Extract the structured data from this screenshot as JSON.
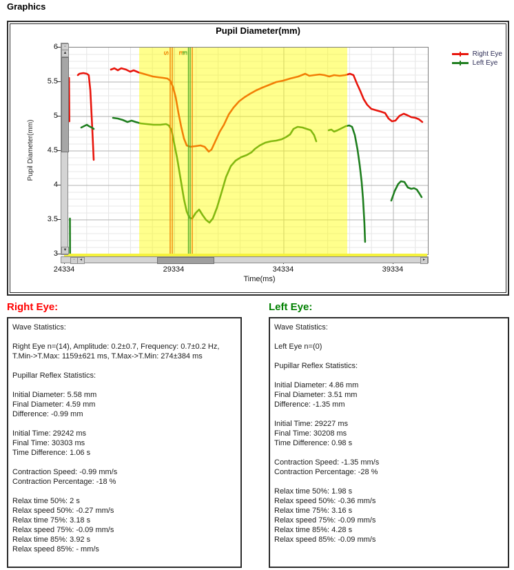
{
  "page": {
    "label": "Graphics"
  },
  "chart": {
    "title": "Pupil Diameter(mm)",
    "legend": [
      {
        "label": "Right Eye",
        "color": "#e8150c"
      },
      {
        "label": "Left Eye",
        "color": "#1e7e1e"
      }
    ],
    "x_axis": {
      "label": "Time(ms)",
      "ticks": [
        24334,
        29334,
        34334,
        39334
      ]
    },
    "y_axis": {
      "label": "Pupil Diameter(mm)",
      "ticks": [
        6,
        5.5,
        5,
        4.5,
        4,
        3.5,
        3
      ]
    }
  },
  "icons": {
    "reset": "▫",
    "up": "▲",
    "down": "▼",
    "left": "◄",
    "right": "►",
    "hreset": "▫"
  },
  "chart_data": {
    "type": "line",
    "title": "Pupil Diameter(mm)",
    "xlabel": "Time(ms)",
    "ylabel": "Pupil Diameter(mm)",
    "xlim": [
      24334,
      40908
    ],
    "ylim": [
      3,
      6
    ],
    "x_ticks": [
      24334,
      29334,
      34334,
      39334
    ],
    "y_ticks": [
      3,
      3.5,
      4,
      4.5,
      5,
      5.5,
      6
    ],
    "x_minor_step": 1000,
    "y_minor_step": 0.1,
    "grid": true,
    "legend_position": "top-right",
    "highlight_band_x": [
      27730,
      37228
    ],
    "highlight_color": "#ffff00",
    "highlight_opacity": 0.45,
    "markers": [
      {
        "label": "S",
        "color": "#ee8300",
        "lines_t": [
          29145,
          29240
        ],
        "label_t": 28865
      },
      {
        "label": "E",
        "color": "#ee8300",
        "lines_t": [
          30152
        ],
        "label_t": 29555
      },
      {
        "label": "E",
        "color": "#52ad27",
        "lines_t": [
          29979,
          30058
        ],
        "label_t": 29715
      }
    ],
    "series": [
      {
        "name": "Right Eye",
        "color": "#e8150c",
        "segments": [
          [
            [
              24530,
              5.56
            ],
            [
              24545,
              4.93
            ]
          ],
          [
            [
              24930,
              5.6
            ],
            [
              25000,
              5.62
            ],
            [
              25180,
              5.63
            ],
            [
              25340,
              5.62
            ],
            [
              25430,
              5.6
            ],
            [
              25500,
              5.38
            ],
            [
              25570,
              4.95
            ],
            [
              25630,
              4.55
            ],
            [
              25655,
              4.37
            ]
          ],
          [
            [
              26441,
              5.68
            ],
            [
              26598,
              5.7
            ],
            [
              26755,
              5.67
            ],
            [
              26912,
              5.7
            ],
            [
              27132,
              5.68
            ],
            [
              27321,
              5.65
            ],
            [
              27478,
              5.67
            ],
            [
              27698,
              5.64
            ],
            [
              27918,
              5.62
            ],
            [
              28138,
              5.6
            ],
            [
              28358,
              5.58
            ],
            [
              28579,
              5.57
            ],
            [
              28830,
              5.56
            ],
            [
              29019,
              5.55
            ],
            [
              29145,
              5.52
            ],
            [
              29271,
              5.43
            ],
            [
              29396,
              5.28
            ],
            [
              29522,
              5.05
            ],
            [
              29648,
              4.85
            ],
            [
              29774,
              4.68
            ],
            [
              29900,
              4.58
            ],
            [
              30057,
              4.56
            ],
            [
              30308,
              4.57
            ],
            [
              30529,
              4.58
            ],
            [
              30717,
              4.56
            ],
            [
              30906,
              4.49
            ],
            [
              31032,
              4.52
            ],
            [
              31220,
              4.65
            ],
            [
              31409,
              4.78
            ],
            [
              31598,
              4.88
            ],
            [
              31818,
              5.03
            ],
            [
              32038,
              5.13
            ],
            [
              32290,
              5.22
            ],
            [
              32541,
              5.28
            ],
            [
              32793,
              5.33
            ],
            [
              33076,
              5.38
            ],
            [
              33359,
              5.42
            ],
            [
              33673,
              5.46
            ],
            [
              33988,
              5.5
            ],
            [
              34302,
              5.52
            ],
            [
              34617,
              5.55
            ],
            [
              34994,
              5.58
            ],
            [
              35309,
              5.62
            ],
            [
              35497,
              5.59
            ],
            [
              35717,
              5.6
            ],
            [
              35969,
              5.61
            ],
            [
              36189,
              5.6
            ],
            [
              36409,
              5.58
            ],
            [
              36629,
              5.6
            ],
            [
              36881,
              5.59
            ],
            [
              37132,
              5.6
            ],
            [
              37352,
              5.62
            ],
            [
              37510,
              5.6
            ],
            [
              37667,
              5.48
            ],
            [
              37824,
              5.37
            ],
            [
              37981,
              5.25
            ],
            [
              38138,
              5.17
            ],
            [
              38327,
              5.11
            ],
            [
              38547,
              5.09
            ],
            [
              38767,
              5.07
            ],
            [
              38956,
              5.05
            ],
            [
              39113,
              4.97
            ],
            [
              39270,
              4.93
            ],
            [
              39427,
              4.94
            ],
            [
              39616,
              5.01
            ],
            [
              39805,
              5.04
            ],
            [
              39962,
              5.02
            ],
            [
              40150,
              4.99
            ],
            [
              40339,
              4.98
            ],
            [
              40496,
              4.96
            ],
            [
              40653,
              4.92
            ]
          ]
        ]
      },
      {
        "name": "Left Eye",
        "color": "#1e7e1e",
        "segments": [
          [
            [
              24570,
              3.52
            ],
            [
              24575,
              3.02
            ]
          ],
          [
            [
              25089,
              4.84
            ],
            [
              25214,
              4.86
            ],
            [
              25340,
              4.88
            ],
            [
              25434,
              4.86
            ],
            [
              25560,
              4.84
            ],
            [
              25655,
              4.82
            ]
          ],
          [
            [
              26535,
              4.98
            ],
            [
              26755,
              4.97
            ],
            [
              26975,
              4.95
            ],
            [
              27195,
              4.92
            ],
            [
              27384,
              4.94
            ],
            [
              27572,
              4.92
            ],
            [
              27792,
              4.9
            ],
            [
              28075,
              4.89
            ],
            [
              28390,
              4.88
            ],
            [
              28704,
              4.88
            ],
            [
              28956,
              4.89
            ],
            [
              29082,
              4.87
            ],
            [
              29208,
              4.8
            ],
            [
              29334,
              4.6
            ],
            [
              29459,
              4.4
            ],
            [
              29617,
              4.1
            ],
            [
              29774,
              3.8
            ],
            [
              29900,
              3.62
            ],
            [
              30025,
              3.53
            ],
            [
              30151,
              3.52
            ],
            [
              30308,
              3.6
            ],
            [
              30466,
              3.65
            ],
            [
              30623,
              3.57
            ],
            [
              30780,
              3.5
            ],
            [
              30937,
              3.46
            ],
            [
              31094,
              3.52
            ],
            [
              31283,
              3.68
            ],
            [
              31472,
              3.88
            ],
            [
              31692,
              4.12
            ],
            [
              31912,
              4.28
            ],
            [
              32132,
              4.36
            ],
            [
              32384,
              4.41
            ],
            [
              32636,
              4.44
            ],
            [
              32856,
              4.48
            ],
            [
              33013,
              4.53
            ],
            [
              33233,
              4.58
            ],
            [
              33485,
              4.62
            ],
            [
              33736,
              4.64
            ],
            [
              33988,
              4.65
            ],
            [
              34240,
              4.67
            ],
            [
              34428,
              4.7
            ],
            [
              34617,
              4.74
            ],
            [
              34774,
              4.82
            ],
            [
              34963,
              4.85
            ],
            [
              35183,
              4.84
            ],
            [
              35372,
              4.82
            ],
            [
              35560,
              4.8
            ],
            [
              35717,
              4.73
            ],
            [
              35812,
              4.64
            ]
          ],
          [
            [
              36378,
              4.8
            ],
            [
              36503,
              4.81
            ],
            [
              36629,
              4.78
            ],
            [
              36786,
              4.8
            ],
            [
              36975,
              4.83
            ],
            [
              37164,
              4.86
            ],
            [
              37321,
              4.87
            ],
            [
              37447,
              4.85
            ],
            [
              37573,
              4.73
            ],
            [
              37698,
              4.52
            ],
            [
              37793,
              4.3
            ],
            [
              37887,
              4.05
            ],
            [
              37950,
              3.8
            ],
            [
              38013,
              3.45
            ],
            [
              38044,
              3.18
            ]
          ],
          [
            [
              39239,
              3.78
            ],
            [
              39396,
              3.92
            ],
            [
              39553,
              4.02
            ],
            [
              39679,
              4.06
            ],
            [
              39836,
              4.05
            ],
            [
              39993,
              3.97
            ],
            [
              40150,
              3.95
            ],
            [
              40276,
              3.96
            ],
            [
              40402,
              3.94
            ],
            [
              40528,
              3.88
            ],
            [
              40622,
              3.83
            ]
          ]
        ]
      }
    ]
  },
  "sections": {
    "right_eye": {
      "heading": "Right Eye:",
      "color": "#ff0000",
      "lines": [
        "Wave Statistics:",
        "",
        "Right Eye n=(14), Amplitude: 0.2±0.7, Frequency: 0.7±0.2 Hz,",
        "T.Min->T.Max: 1159±621 ms, T.Max->T.Min: 274±384 ms",
        "",
        "Pupillar Reflex Statistics:",
        "",
        "Initial Diameter: 5.58 mm",
        "Final Diameter: 4.59 mm",
        "Difference: -0.99 mm",
        "",
        "Initial Time: 29242 ms",
        "Final Time: 30303 ms",
        "Time Difference: 1.06 s",
        "",
        "Contraction Speed: -0.99 mm/s",
        "Contraction Percentage: -18 %",
        "",
        "Relax time 50%: 2 s",
        "Relax speed 50%: -0.27 mm/s",
        "Relax time 75%: 3.18 s",
        "Relax speed 75%: -0.09 mm/s",
        "Relax time 85%: 3.92 s",
        "Relax speed 85%: - mm/s"
      ]
    },
    "left_eye": {
      "heading": "Left Eye:",
      "color": "#008000",
      "lines": [
        "Wave Statistics:",
        "",
        "Left Eye n=(0)",
        "",
        "Pupillar Reflex Statistics:",
        "",
        "Initial Diameter: 4.86 mm",
        "Final Diameter: 3.51 mm",
        "Difference: -1.35 mm",
        "",
        "Initial Time: 29227 ms",
        "Final Time: 30208 ms",
        "Time Difference: 0.98 s",
        "",
        "Contraction Speed: -1.35 mm/s",
        "Contraction Percentage: -28 %",
        "",
        "Relax time 50%: 1.98 s",
        "Relax speed 50%: -0.36 mm/s",
        "Relax time 75%: 3.16 s",
        "Relax speed 75%: -0.09 mm/s",
        "Relax time 85%: 4.28 s",
        "Relax speed 85%: -0.09 mm/s"
      ]
    }
  }
}
